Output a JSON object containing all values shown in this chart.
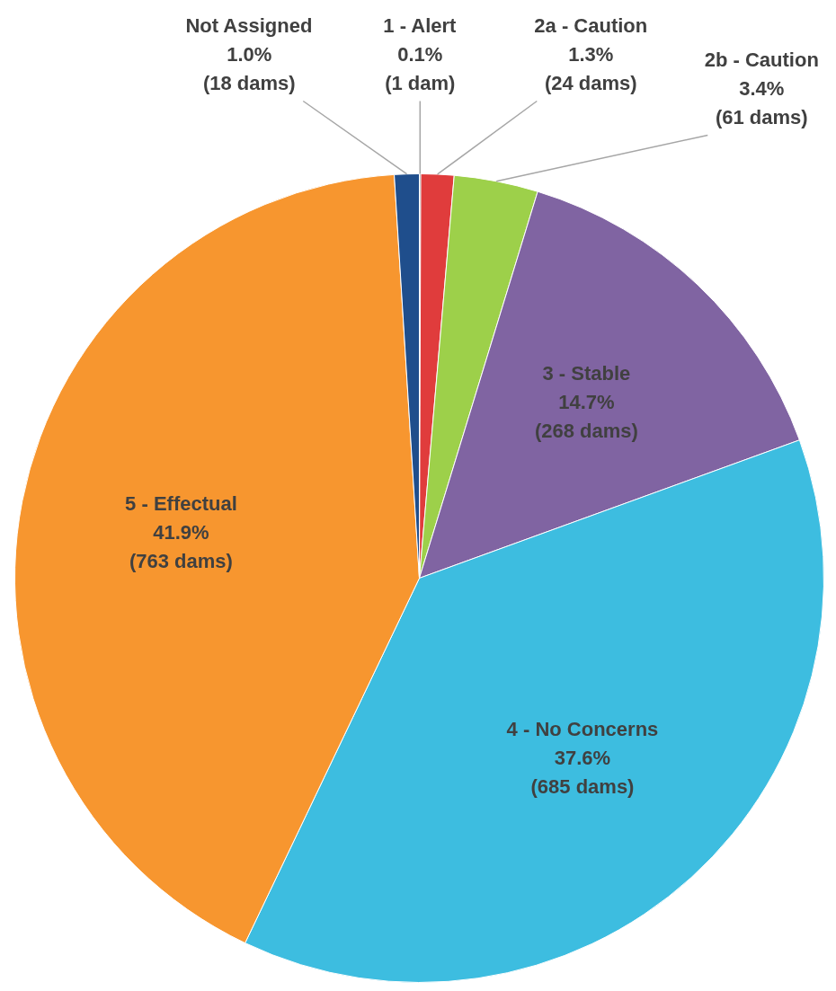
{
  "chart_data": {
    "type": "pie",
    "categories": [
      "1 - Alert",
      "2a - Caution",
      "2b - Caution",
      "3 - Stable",
      "4 - No Concerns",
      "5 - Effectual",
      "Not Assigned"
    ],
    "values": [
      1,
      24,
      61,
      268,
      685,
      763,
      18
    ],
    "colors": [
      "#404040",
      "#e03c3c",
      "#9dd04a",
      "#8064a2",
      "#3dbde0",
      "#f7962f",
      "#1f4e8c"
    ],
    "value_labels": [
      "0.1%\n(1 dam)",
      "1.3%\n(24 dams)",
      "3.4%\n(61 dams)",
      "14.7%\n(268 dams)",
      "37.6%\n(685 dams)",
      "41.9%\n(763 dams)",
      "1.0%\n(18 dams)"
    ]
  }
}
